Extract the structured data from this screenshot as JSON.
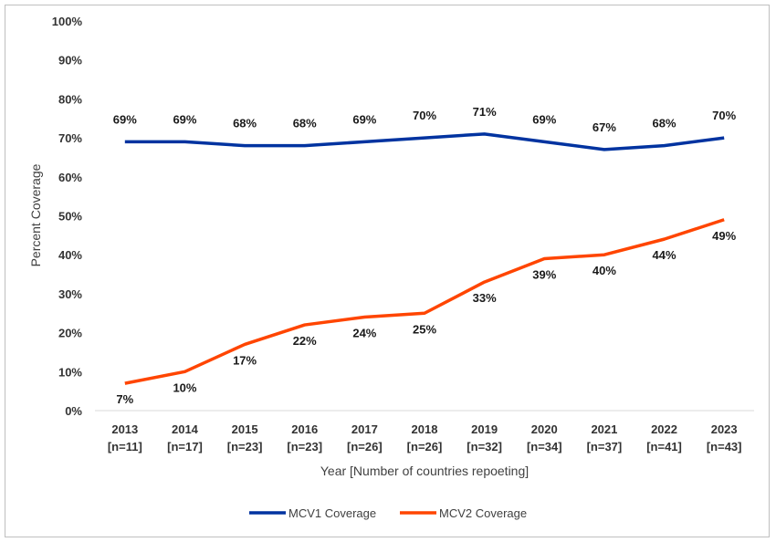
{
  "chart_data": {
    "type": "line",
    "title": "",
    "xlabel": "Year [Number of countries repoeting]",
    "ylabel": "Percent Coverage",
    "ylim": [
      0,
      100
    ],
    "yticks": [
      "0%",
      "10%",
      "20%",
      "30%",
      "40%",
      "50%",
      "60%",
      "70%",
      "80%",
      "90%",
      "100%"
    ],
    "categories": [
      "2013",
      "2014",
      "2015",
      "2016",
      "2017",
      "2018",
      "2019",
      "2020",
      "2021",
      "2022",
      "2023"
    ],
    "category_n": [
      "[n=11]",
      "[n=17]",
      "[n=23]",
      "[n=23]",
      "[n=26]",
      "[n=26]",
      "[n=32]",
      "[n=34]",
      "[n=37]",
      "[n=41]",
      "[n=43]"
    ],
    "grid": false,
    "legend_position": "bottom",
    "series": [
      {
        "name": "MCV1 Coverage",
        "color": "#0033a0",
        "values": [
          69,
          69,
          68,
          68,
          69,
          70,
          71,
          69,
          67,
          68,
          70
        ],
        "labels": [
          "69%",
          "69%",
          "68%",
          "68%",
          "69%",
          "70%",
          "71%",
          "69%",
          "67%",
          "68%",
          "70%"
        ]
      },
      {
        "name": "MCV2 Coverage",
        "color": "#ff4500",
        "values": [
          7,
          10,
          17,
          22,
          24,
          25,
          33,
          39,
          40,
          44,
          49
        ],
        "labels": [
          "7%",
          "10%",
          "17%",
          "22%",
          "24%",
          "25%",
          "33%",
          "39%",
          "40%",
          "44%",
          "49%"
        ]
      }
    ]
  }
}
